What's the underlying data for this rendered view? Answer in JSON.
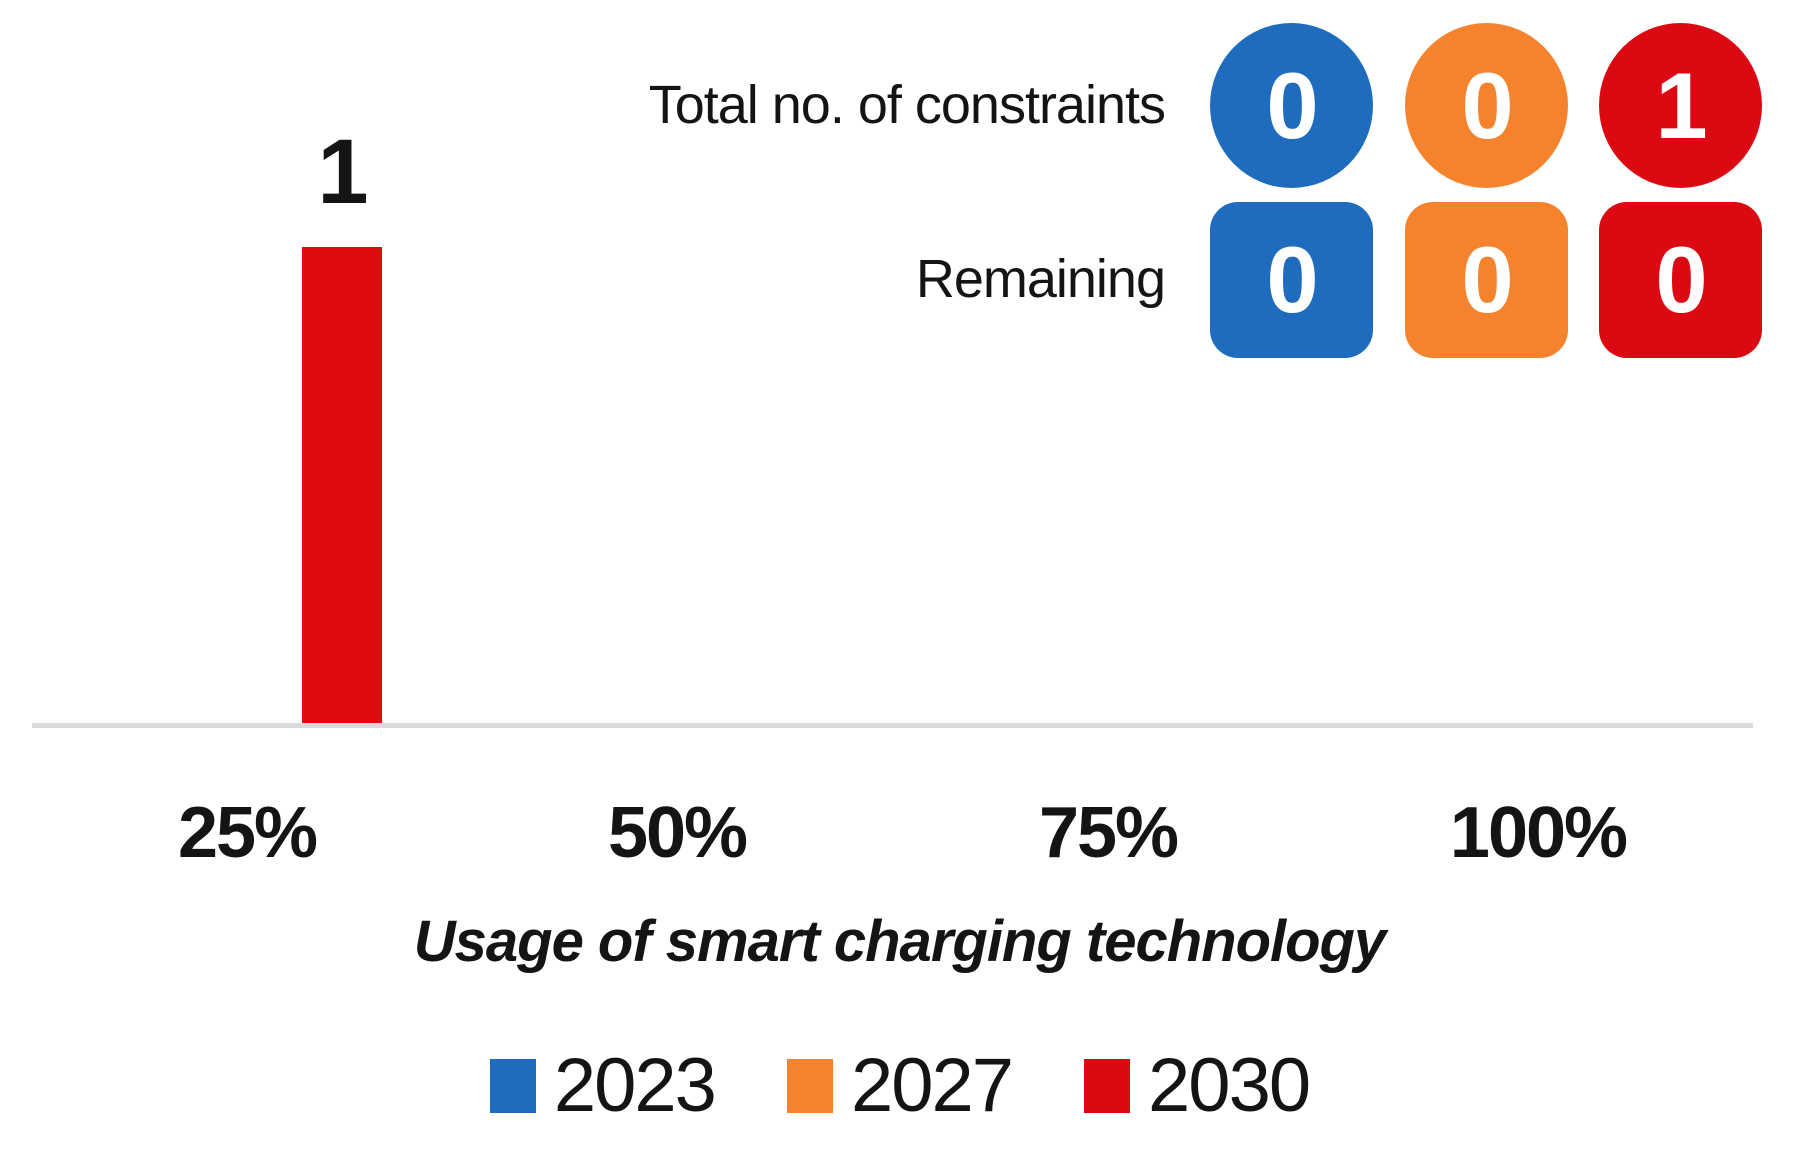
{
  "colors": {
    "blue": "#1f6cbf",
    "orange": "#f5832e",
    "red": "#dc0912",
    "bar_red": "#e00b11",
    "axis_line": "#dadada",
    "text": "#141414",
    "badge_text": "#ffffff"
  },
  "counters": {
    "total": {
      "label": "Total no. of constraints",
      "values": [
        {
          "year": "2023",
          "value": "0"
        },
        {
          "year": "2027",
          "value": "0"
        },
        {
          "year": "2030",
          "value": "1"
        }
      ]
    },
    "remaining": {
      "label": "Remaining",
      "values": [
        {
          "year": "2023",
          "value": "0"
        },
        {
          "year": "2027",
          "value": "0"
        },
        {
          "year": "2030",
          "value": "0"
        }
      ]
    }
  },
  "chart_data": {
    "type": "bar",
    "categories": [
      "25%",
      "50%",
      "75%",
      "100%"
    ],
    "series": [
      {
        "name": "2023",
        "color": "#1f6cbf",
        "values": [
          0,
          0,
          0,
          0
        ]
      },
      {
        "name": "2027",
        "color": "#f5832e",
        "values": [
          0,
          0,
          0,
          0
        ]
      },
      {
        "name": "2030",
        "color": "#dc0912",
        "values": [
          1,
          0,
          0,
          0
        ]
      }
    ],
    "data_labels": [
      {
        "series": "2030",
        "category": "25%",
        "label": "1"
      }
    ],
    "title": "",
    "xlabel": "Usage of smart charging technology",
    "ylabel": "",
    "ylim": [
      0,
      1
    ],
    "grid": false,
    "legend_position": "bottom"
  },
  "legend": {
    "items": [
      {
        "label": "2023",
        "color": "#1f6cbf"
      },
      {
        "label": "2027",
        "color": "#f5832e"
      },
      {
        "label": "2030",
        "color": "#dc0912"
      }
    ]
  }
}
